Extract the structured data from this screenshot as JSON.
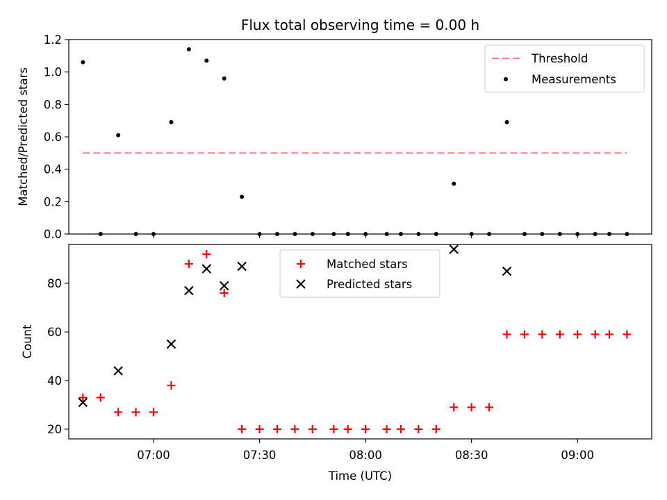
{
  "chart_data": [
    {
      "type": "scatter",
      "title": "Flux total observing time = 0.00 h",
      "ylabel": "Matched/Predicted stars",
      "xlabel": "",
      "ylim": [
        0,
        1.2
      ],
      "yticks": [
        "0.0",
        "0.2",
        "0.4",
        "0.6",
        "0.8",
        "1.0",
        "1.2"
      ],
      "legend_position": "top-right",
      "threshold": {
        "name": "Threshold",
        "value": 0.5,
        "x_start": "06:40",
        "x_end": "09:14",
        "color": "#ff7f7f"
      },
      "series": [
        {
          "name": "Measurements",
          "color": "#000000",
          "points": [
            {
              "x": "06:40",
              "y": 1.06
            },
            {
              "x": "06:45",
              "y": 0.0
            },
            {
              "x": "06:50",
              "y": 0.61
            },
            {
              "x": "06:55",
              "y": 0.0
            },
            {
              "x": "07:00",
              "y": 0.0
            },
            {
              "x": "07:05",
              "y": 0.69
            },
            {
              "x": "07:10",
              "y": 1.14
            },
            {
              "x": "07:15",
              "y": 1.07
            },
            {
              "x": "07:20",
              "y": 0.96
            },
            {
              "x": "07:25",
              "y": 0.23
            },
            {
              "x": "07:30",
              "y": 0.0
            },
            {
              "x": "07:35",
              "y": 0.0
            },
            {
              "x": "07:40",
              "y": 0.0
            },
            {
              "x": "07:45",
              "y": 0.0
            },
            {
              "x": "07:51",
              "y": 0.0
            },
            {
              "x": "07:55",
              "y": 0.0
            },
            {
              "x": "08:00",
              "y": 0.0
            },
            {
              "x": "08:06",
              "y": 0.0
            },
            {
              "x": "08:10",
              "y": 0.0
            },
            {
              "x": "08:15",
              "y": 0.0
            },
            {
              "x": "08:20",
              "y": 0.0
            },
            {
              "x": "08:25",
              "y": 0.31
            },
            {
              "x": "08:30",
              "y": 0.0
            },
            {
              "x": "08:35",
              "y": 0.0
            },
            {
              "x": "08:40",
              "y": 0.69
            },
            {
              "x": "08:45",
              "y": 0.0
            },
            {
              "x": "08:50",
              "y": 0.0
            },
            {
              "x": "08:55",
              "y": 0.0
            },
            {
              "x": "09:00",
              "y": 0.0
            },
            {
              "x": "09:05",
              "y": 0.0
            },
            {
              "x": "09:09",
              "y": 0.0
            },
            {
              "x": "09:14",
              "y": 0.0
            }
          ]
        }
      ]
    },
    {
      "type": "scatter",
      "title": "",
      "ylabel": "Count",
      "xlabel": "Time (UTC)",
      "ylim": [
        16,
        96
      ],
      "yticks": [
        "20",
        "40",
        "60",
        "80"
      ],
      "xticks": [
        "07:00",
        "07:30",
        "08:00",
        "08:30",
        "09:00"
      ],
      "x_range": [
        "06:36",
        "09:21"
      ],
      "legend_position": "top-center",
      "series": [
        {
          "name": "Matched stars",
          "marker": "plus",
          "color": "#ff0000",
          "points": [
            {
              "x": "06:40",
              "y": 33
            },
            {
              "x": "06:45",
              "y": 33
            },
            {
              "x": "06:50",
              "y": 27
            },
            {
              "x": "06:55",
              "y": 27
            },
            {
              "x": "07:00",
              "y": 27
            },
            {
              "x": "07:05",
              "y": 38
            },
            {
              "x": "07:10",
              "y": 88
            },
            {
              "x": "07:15",
              "y": 92
            },
            {
              "x": "07:20",
              "y": 76
            },
            {
              "x": "07:25",
              "y": 20
            },
            {
              "x": "07:30",
              "y": 20
            },
            {
              "x": "07:35",
              "y": 20
            },
            {
              "x": "07:40",
              "y": 20
            },
            {
              "x": "07:45",
              "y": 20
            },
            {
              "x": "07:51",
              "y": 20
            },
            {
              "x": "07:55",
              "y": 20
            },
            {
              "x": "08:00",
              "y": 20
            },
            {
              "x": "08:06",
              "y": 20
            },
            {
              "x": "08:10",
              "y": 20
            },
            {
              "x": "08:15",
              "y": 20
            },
            {
              "x": "08:20",
              "y": 20
            },
            {
              "x": "08:25",
              "y": 29
            },
            {
              "x": "08:30",
              "y": 29
            },
            {
              "x": "08:35",
              "y": 29
            },
            {
              "x": "08:40",
              "y": 59
            },
            {
              "x": "08:45",
              "y": 59
            },
            {
              "x": "08:50",
              "y": 59
            },
            {
              "x": "08:55",
              "y": 59
            },
            {
              "x": "09:00",
              "y": 59
            },
            {
              "x": "09:05",
              "y": 59
            },
            {
              "x": "09:09",
              "y": 59
            },
            {
              "x": "09:14",
              "y": 59
            }
          ]
        },
        {
          "name": "Predicted stars",
          "marker": "x",
          "color": "#000000",
          "points": [
            {
              "x": "06:40",
              "y": 31
            },
            {
              "x": "06:50",
              "y": 44
            },
            {
              "x": "07:05",
              "y": 55
            },
            {
              "x": "07:10",
              "y": 77
            },
            {
              "x": "07:15",
              "y": 86
            },
            {
              "x": "07:20",
              "y": 79
            },
            {
              "x": "07:25",
              "y": 87
            },
            {
              "x": "08:25",
              "y": 94
            },
            {
              "x": "08:40",
              "y": 85
            }
          ]
        }
      ]
    }
  ]
}
